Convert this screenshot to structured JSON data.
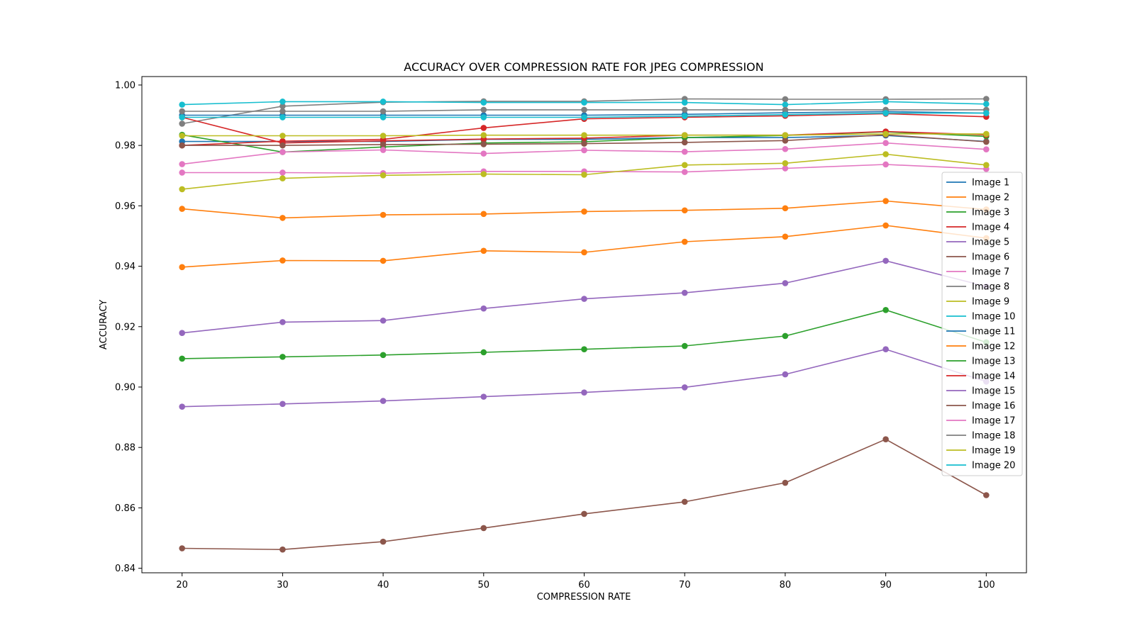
{
  "chart_data": {
    "type": "line",
    "title": "ACCURACY OVER COMPRESSION RATE FOR JPEG COMPRESSION",
    "xlabel": "COMPRESSION RATE",
    "ylabel": "ACCURACY",
    "x": [
      20,
      30,
      40,
      50,
      60,
      70,
      80,
      90,
      100
    ],
    "xticks": [
      "20",
      "30",
      "40",
      "50",
      "60",
      "70",
      "80",
      "90",
      "100"
    ],
    "yticks": [
      "0.84",
      "0.86",
      "0.88",
      "0.90",
      "0.92",
      "0.94",
      "0.96",
      "0.98",
      "1.00"
    ],
    "xlim": [
      16,
      104
    ],
    "ylim": [
      0.8385,
      1.0028
    ],
    "legend_position": "right",
    "grid": false,
    "series": [
      {
        "name": "Image 1",
        "color": "#1f77b4",
        "values": [
          0.9813,
          0.9813,
          0.9813,
          0.982,
          0.982,
          0.9826,
          0.9826,
          0.9833,
          0.9813
        ]
      },
      {
        "name": "Image 2",
        "color": "#ff7f0e",
        "values": [
          0.959,
          0.956,
          0.957,
          0.9573,
          0.9581,
          0.9585,
          0.9592,
          0.9616,
          0.9588
        ]
      },
      {
        "name": "Image 3",
        "color": "#2ca02c",
        "values": [
          0.9835,
          0.9778,
          0.9795,
          0.9808,
          0.9812,
          0.9826,
          0.9833,
          0.9845,
          0.983
        ]
      },
      {
        "name": "Image 4",
        "color": "#d62728",
        "values": [
          0.98,
          0.9814,
          0.982,
          0.9858,
          0.9888,
          0.9893,
          0.9898,
          0.9905,
          0.9895
        ]
      },
      {
        "name": "Image 5",
        "color": "#9467bd",
        "values": [
          0.9179,
          0.9215,
          0.922,
          0.926,
          0.9292,
          0.9312,
          0.9344,
          0.9418,
          0.9333
        ]
      },
      {
        "name": "Image 6",
        "color": "#8c564b",
        "values": [
          0.8466,
          0.8462,
          0.8488,
          0.8533,
          0.858,
          0.862,
          0.8683,
          0.8827,
          0.8642
        ]
      },
      {
        "name": "Image 7",
        "color": "#e377c2",
        "values": [
          0.971,
          0.971,
          0.9708,
          0.9714,
          0.9714,
          0.9712,
          0.9724,
          0.9737,
          0.9722
        ]
      },
      {
        "name": "Image 8",
        "color": "#7f7f7f",
        "values": [
          0.9872,
          0.993,
          0.9943,
          0.9946,
          0.9946,
          0.9954,
          0.9953,
          0.9953,
          0.9954
        ]
      },
      {
        "name": "Image 9",
        "color": "#bcbd22",
        "values": [
          0.9655,
          0.9691,
          0.9701,
          0.9705,
          0.9703,
          0.9735,
          0.9741,
          0.9771,
          0.9735
        ]
      },
      {
        "name": "Image 10",
        "color": "#17becf",
        "values": [
          0.9935,
          0.9945,
          0.9945,
          0.9942,
          0.9942,
          0.9942,
          0.9935,
          0.9945,
          0.9937
        ]
      },
      {
        "name": "Image 11",
        "color": "#1f77b4",
        "values": [
          0.99,
          0.99,
          0.99,
          0.99,
          0.99,
          0.9903,
          0.9908,
          0.9912,
          0.9907
        ]
      },
      {
        "name": "Image 12",
        "color": "#ff7f0e",
        "values": [
          0.9397,
          0.9419,
          0.9418,
          0.9451,
          0.9446,
          0.9481,
          0.9498,
          0.9535,
          0.9493
        ]
      },
      {
        "name": "Image 13",
        "color": "#2ca02c",
        "values": [
          0.9094,
          0.91,
          0.9106,
          0.9115,
          0.9125,
          0.9136,
          0.9169,
          0.9255,
          0.9148
        ]
      },
      {
        "name": "Image 14",
        "color": "#d62728",
        "values": [
          0.9893,
          0.9808,
          0.9815,
          0.9821,
          0.9824,
          0.9834,
          0.9834,
          0.9846,
          0.9835
        ]
      },
      {
        "name": "Image 15",
        "color": "#9467bd",
        "values": [
          0.8935,
          0.8944,
          0.8954,
          0.8968,
          0.8982,
          0.8999,
          0.9042,
          0.9125,
          0.9018
        ]
      },
      {
        "name": "Image 16",
        "color": "#8c564b",
        "values": [
          0.98,
          0.98,
          0.9803,
          0.9804,
          0.9806,
          0.981,
          0.9816,
          0.9835,
          0.9812
        ]
      },
      {
        "name": "Image 17",
        "color": "#e377c2",
        "values": [
          0.9738,
          0.9778,
          0.9785,
          0.9773,
          0.9784,
          0.9779,
          0.9788,
          0.9808,
          0.9787
        ]
      },
      {
        "name": "Image 18",
        "color": "#7f7f7f",
        "values": [
          0.9913,
          0.9913,
          0.9913,
          0.9918,
          0.9918,
          0.9918,
          0.9918,
          0.9918,
          0.9918
        ]
      },
      {
        "name": "Image 19",
        "color": "#bcbd22",
        "values": [
          0.9832,
          0.9832,
          0.9832,
          0.9834,
          0.9834,
          0.9834,
          0.9834,
          0.9838,
          0.9838
        ]
      },
      {
        "name": "Image 20",
        "color": "#17becf",
        "values": [
          0.9893,
          0.9893,
          0.9893,
          0.9893,
          0.9893,
          0.9897,
          0.9902,
          0.9907,
          0.9907
        ]
      }
    ]
  }
}
